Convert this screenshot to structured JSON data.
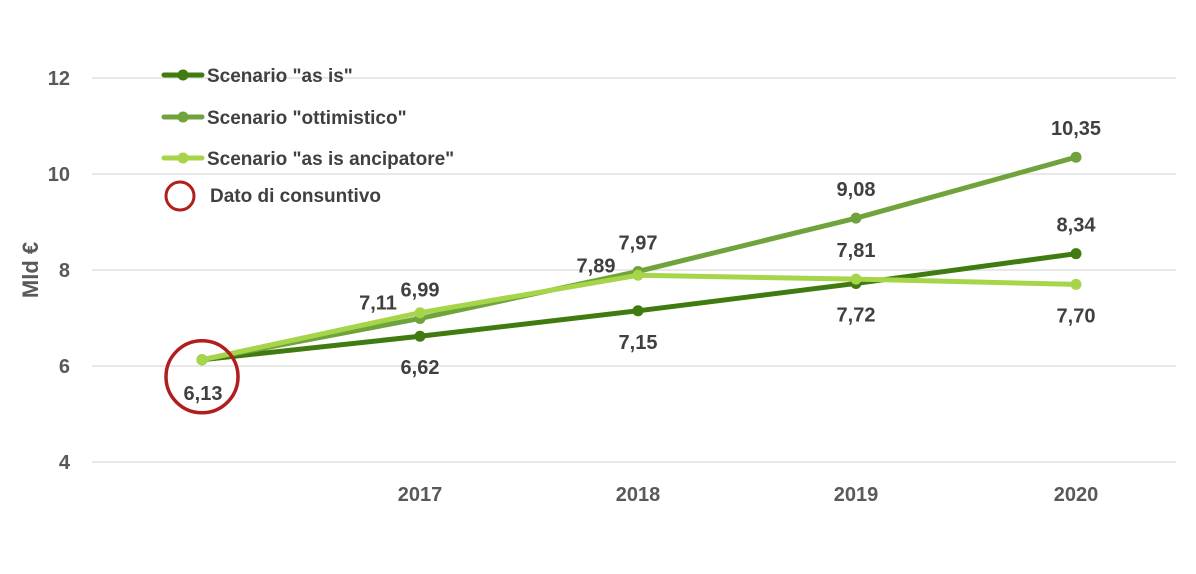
{
  "chart_data": {
    "type": "line",
    "ylabel": "Mld €",
    "ylim": [
      4,
      12
    ],
    "yticks": [
      4,
      6,
      8,
      10,
      12
    ],
    "ytick_labels": [
      "4",
      "6",
      "8",
      "10",
      "12"
    ],
    "x": [
      "",
      "2017",
      "2018",
      "2019",
      "2020"
    ],
    "grid": true,
    "legend_position": "top-left",
    "series": [
      {
        "name": "Scenario \"as is\"",
        "color": "#3F7B0F",
        "values": [
          6.13,
          6.62,
          7.15,
          7.72,
          8.34
        ],
        "labels": [
          "",
          "6,62",
          "7,15",
          "7,72",
          "8,34"
        ],
        "label_side": [
          "below",
          "below",
          "below",
          "below",
          "above"
        ]
      },
      {
        "name": "Scenario \"ottimistico\"",
        "color": "#70A33C",
        "values": [
          6.13,
          6.99,
          7.97,
          9.08,
          10.35
        ],
        "labels": [
          "",
          "6,99",
          "7,97",
          "9,08",
          "10,35"
        ],
        "label_side": [
          "above",
          "above",
          "above",
          "above",
          "above"
        ]
      },
      {
        "name": "Scenario \"as is ancipatore\"",
        "color": "#A6D54A",
        "values": [
          6.13,
          7.11,
          7.89,
          7.81,
          7.7
        ],
        "labels": [
          "",
          "7,11",
          "7,89",
          "7,81",
          "7,70"
        ],
        "label_side": [
          "above",
          "left",
          "left",
          "above",
          "below"
        ]
      }
    ],
    "annotations": [
      {
        "type": "circle",
        "x_index": 0,
        "value": 6.13,
        "label": "6,13",
        "color": "#B01E1E",
        "legend": "Dato di consuntivo"
      }
    ]
  }
}
